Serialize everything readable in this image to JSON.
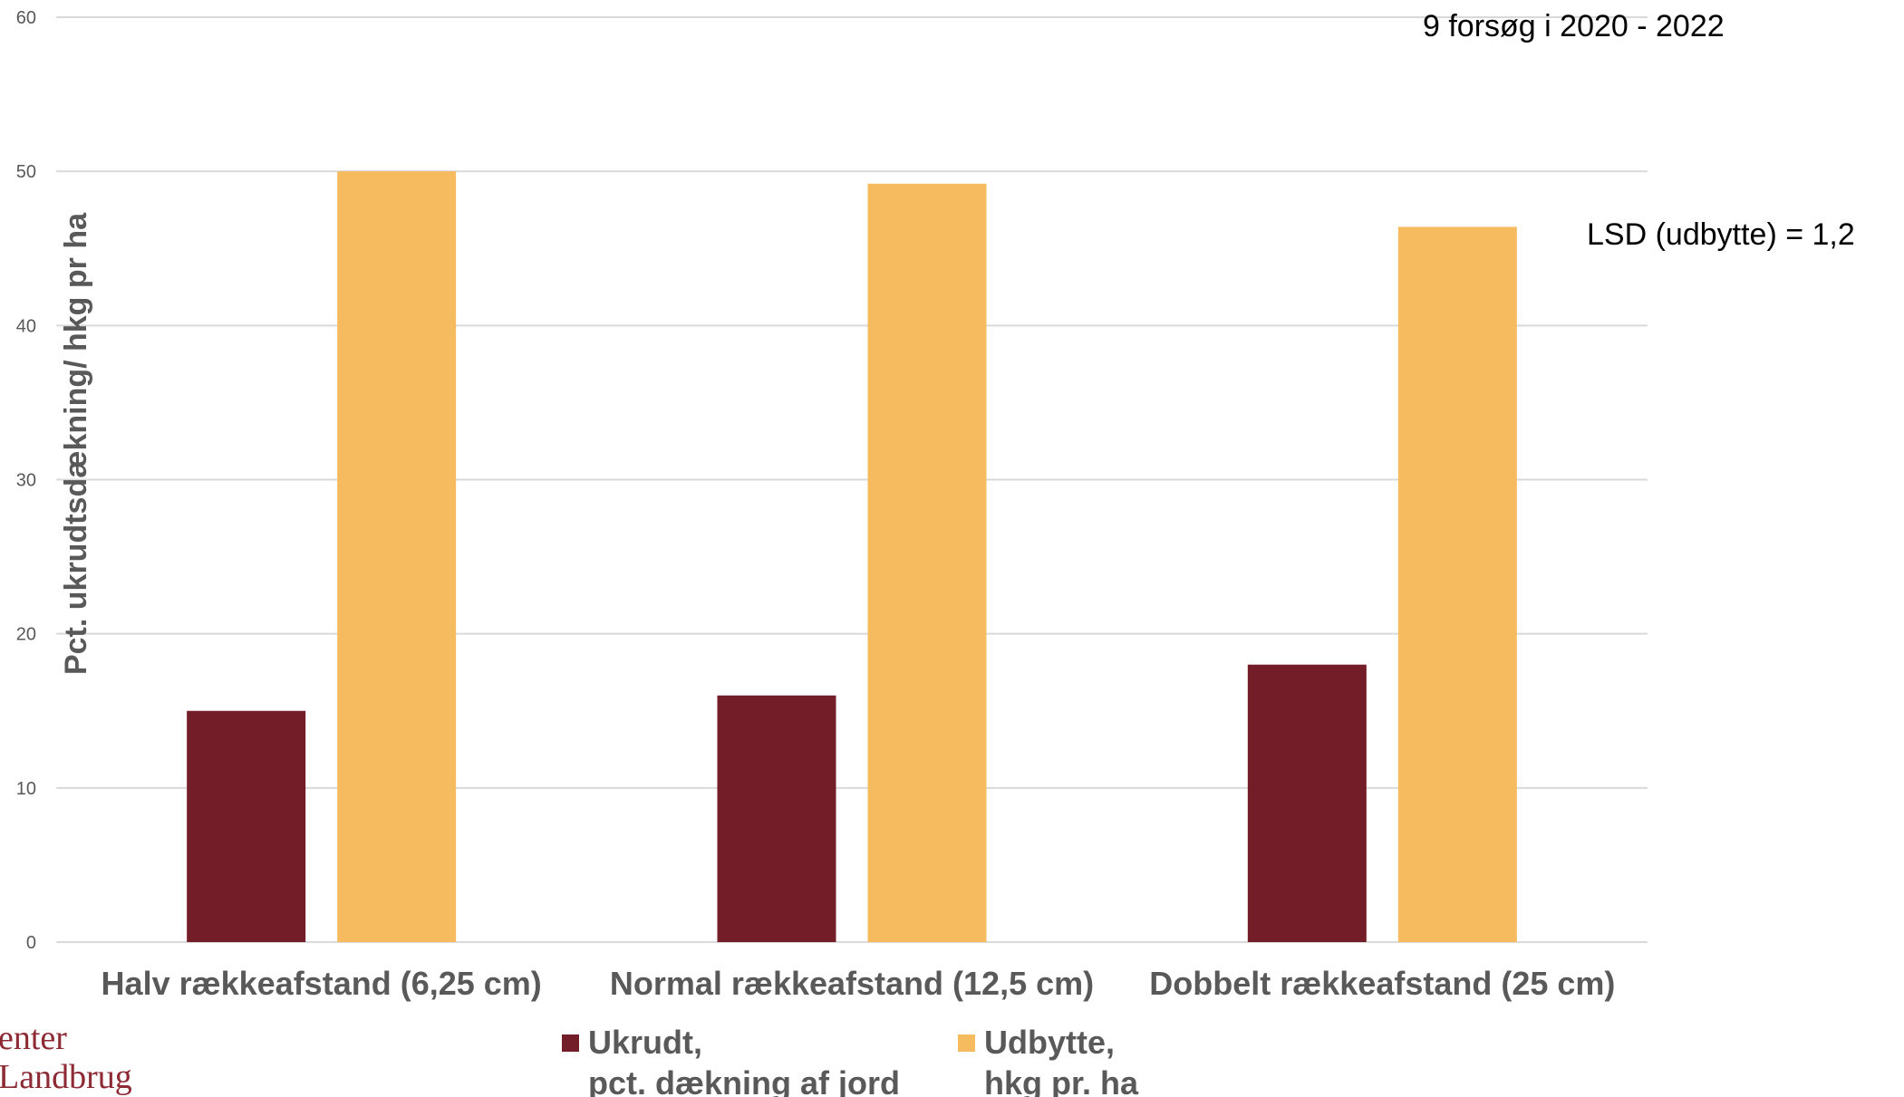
{
  "chart_data": {
    "type": "bar",
    "categories": [
      "Halv rækkeafstand (6,25 cm)",
      "Normal rækkeafstand (12,5 cm)",
      "Dobbelt rækkeafstand (25 cm)"
    ],
    "series": [
      {
        "name_lines": [
          "Ukrudt,",
          "pct. dækning af jord"
        ],
        "values": [
          15,
          16,
          18
        ]
      },
      {
        "name_lines": [
          "Udbytte,",
          "hkg pr. ha"
        ],
        "values": [
          50,
          49.2,
          46.4
        ]
      }
    ],
    "ylabel": "Pct. ukrudtsdækning/ hkg pr ha",
    "ylim": [
      0,
      60
    ],
    "yticks": [
      0,
      10,
      20,
      30,
      40,
      50,
      60
    ],
    "grid": true,
    "legend": "bottom",
    "annotations": [
      "9 forsøg i 2020 - 2022",
      "LSD (udbytte) = 1,2"
    ]
  },
  "colors": {
    "series": [
      "#731d28",
      "#f6bb5f"
    ],
    "grid": "#d9d9d9",
    "text": "#595959",
    "logo": "#8e2a33"
  },
  "logo": {
    "line1": "enter",
    "line2": "Landbrug"
  }
}
